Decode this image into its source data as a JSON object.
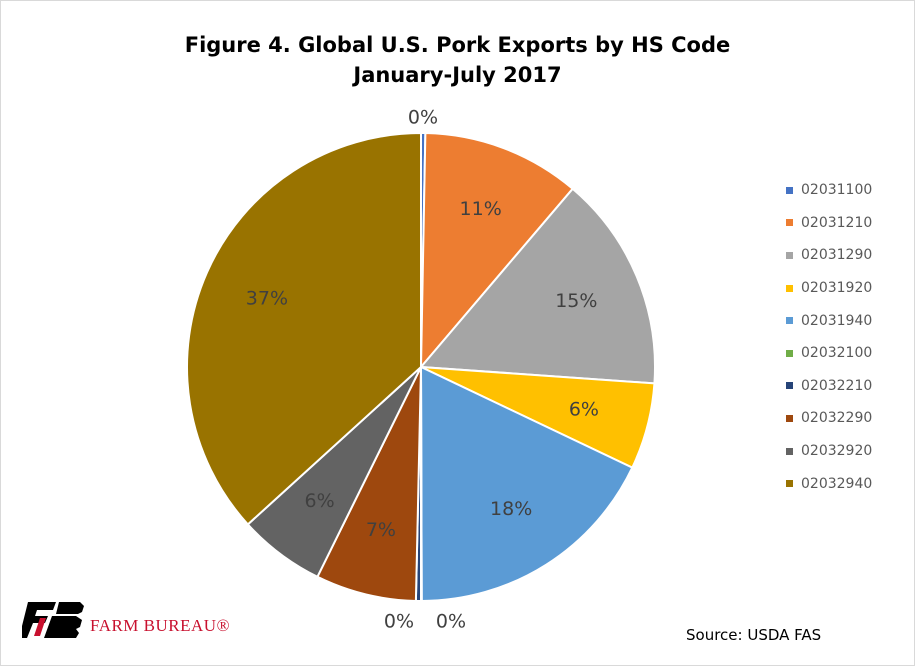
{
  "chart_data": {
    "type": "pie",
    "title": "Figure 4. Global U.S. Pork Exports by HS Code",
    "subtitle": "January-July 2017",
    "slices": [
      {
        "label": "02031100",
        "value": 0.3,
        "display": "0%",
        "color": "#4472C4"
      },
      {
        "label": "02031210",
        "value": 11,
        "display": "11%",
        "color": "#ED7D31"
      },
      {
        "label": "02031290",
        "value": 15,
        "display": "15%",
        "color": "#A5A5A5"
      },
      {
        "label": "02031920",
        "value": 6,
        "display": "6%",
        "color": "#FFC000"
      },
      {
        "label": "02031940",
        "value": 18,
        "display": "18%",
        "color": "#5B9BD5"
      },
      {
        "label": "02032100",
        "value": 0.05,
        "display": "0%",
        "color": "#70AD47"
      },
      {
        "label": "02032210",
        "value": 0.35,
        "display": "0%",
        "color": "#264478"
      },
      {
        "label": "02032290",
        "value": 7,
        "display": "7%",
        "color": "#9E480E"
      },
      {
        "label": "02032920",
        "value": 6,
        "display": "6%",
        "color": "#636363"
      },
      {
        "label": "02032940",
        "value": 37,
        "display": "37%",
        "color": "#997300"
      }
    ],
    "legend_position": "right"
  },
  "footer": {
    "logo_text": "FARM BUREAU®",
    "source": "Source: USDA FAS"
  }
}
